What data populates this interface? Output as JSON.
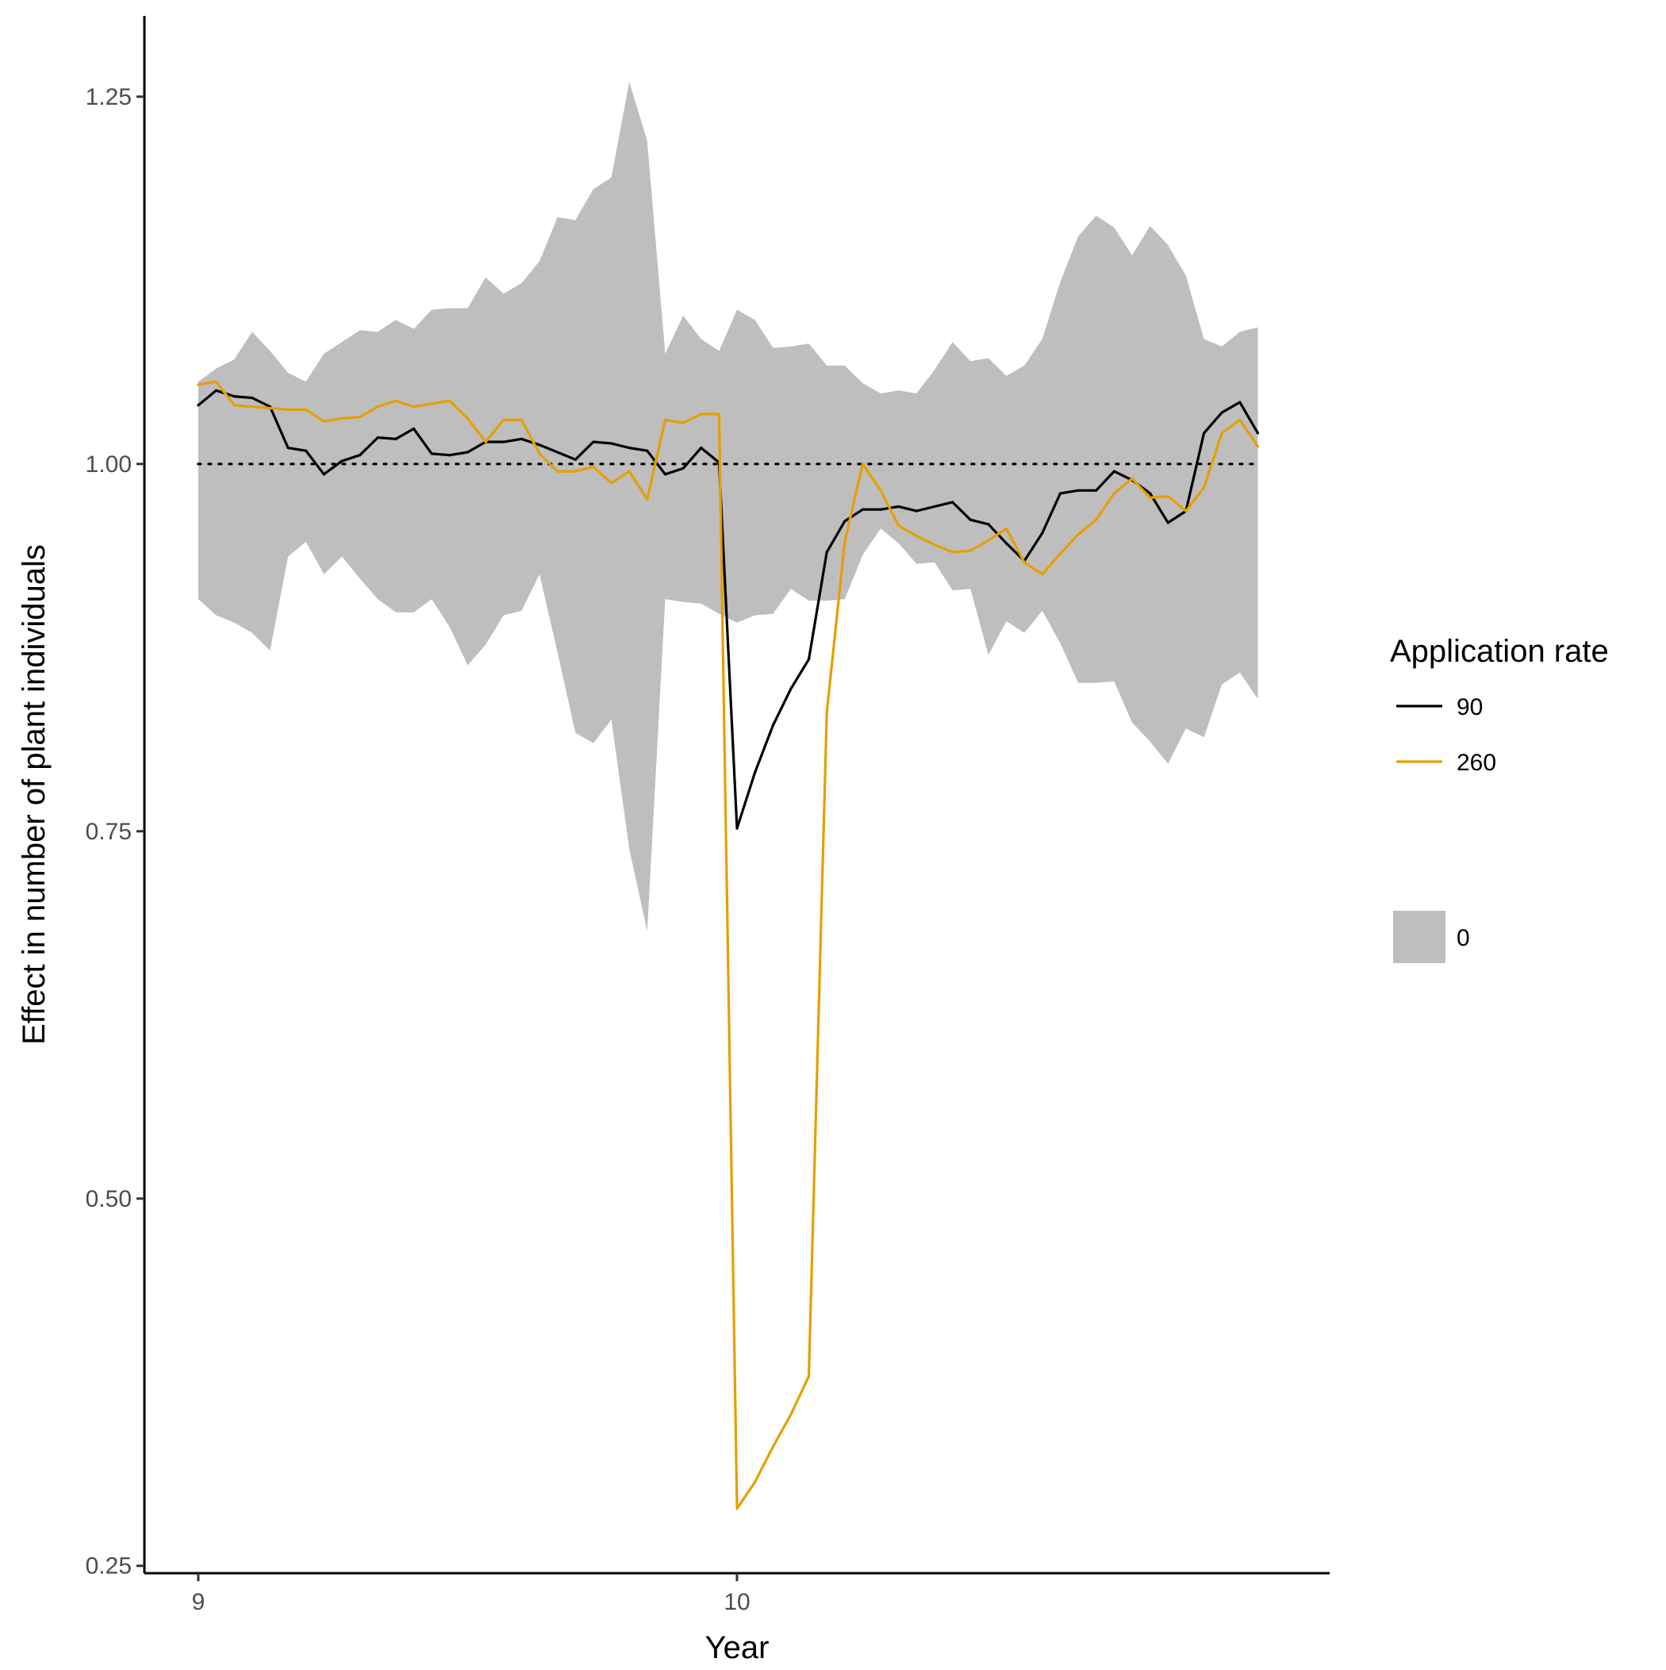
{
  "chart_data": {
    "type": "line",
    "title": "",
    "xlabel": "Year",
    "ylabel": "Effect in number of plant individuals",
    "xlim": [
      8.9,
      11.1
    ],
    "ylim": [
      0.245,
      1.305
    ],
    "x_ticks": [
      {
        "value": 9,
        "label": "9"
      },
      {
        "value": 10,
        "label": "10"
      }
    ],
    "y_ticks": [
      {
        "value": 0.25,
        "label": "0.25"
      },
      {
        "value": 0.5,
        "label": "0.50"
      },
      {
        "value": 0.75,
        "label": "0.75"
      },
      {
        "value": 1.0,
        "label": "1.00"
      },
      {
        "value": 1.25,
        "label": "1.25"
      }
    ],
    "reference_line": {
      "y": 1.0,
      "style": "dotted",
      "color": "#000000"
    },
    "x": [
      9.0,
      9.0333,
      9.0667,
      9.1,
      9.1333,
      9.1667,
      9.2,
      9.2333,
      9.2667,
      9.3,
      9.3333,
      9.3667,
      9.4,
      9.4333,
      9.4667,
      9.5,
      9.5333,
      9.5667,
      9.6,
      9.6333,
      9.6667,
      9.7,
      9.7333,
      9.7667,
      9.8,
      9.8333,
      9.8667,
      9.9,
      9.9333,
      9.9667,
      10.0,
      10.0333,
      10.0667,
      10.1,
      10.1333,
      10.1667,
      10.2,
      10.2333,
      10.2667,
      10.3,
      10.3333,
      10.3667,
      10.4,
      10.4333,
      10.4667,
      10.5,
      10.5333,
      10.5667,
      10.6,
      10.6333,
      10.6667,
      10.7,
      10.7333,
      10.7667,
      10.8,
      10.8333,
      10.8667,
      10.9,
      10.9333,
      10.9667
    ],
    "band": {
      "name": "0",
      "color": "#bebebe",
      "lower": [
        0.908,
        0.897,
        0.892,
        0.885,
        0.873,
        0.937,
        0.947,
        0.925,
        0.937,
        0.922,
        0.908,
        0.899,
        0.899,
        0.908,
        0.889,
        0.863,
        0.877,
        0.897,
        0.9,
        0.925,
        0.872,
        0.817,
        0.81,
        0.826,
        0.738,
        0.682,
        0.908,
        0.906,
        0.905,
        0.898,
        0.892,
        0.897,
        0.898,
        0.915,
        0.907,
        0.907,
        0.908,
        0.938,
        0.956,
        0.946,
        0.932,
        0.933,
        0.914,
        0.915,
        0.87,
        0.893,
        0.885,
        0.9,
        0.878,
        0.851,
        0.851,
        0.852,
        0.824,
        0.811,
        0.796,
        0.82,
        0.814,
        0.85,
        0.858,
        0.84
      ],
      "upper": [
        1.056,
        1.065,
        1.071,
        1.09,
        1.077,
        1.062,
        1.056,
        1.075,
        1.083,
        1.091,
        1.09,
        1.098,
        1.092,
        1.105,
        1.106,
        1.106,
        1.127,
        1.116,
        1.123,
        1.138,
        1.168,
        1.166,
        1.187,
        1.195,
        1.26,
        1.22,
        1.075,
        1.101,
        1.085,
        1.077,
        1.105,
        1.098,
        1.079,
        1.08,
        1.082,
        1.067,
        1.067,
        1.055,
        1.048,
        1.05,
        1.048,
        1.064,
        1.083,
        1.07,
        1.072,
        1.06,
        1.067,
        1.085,
        1.124,
        1.155,
        1.169,
        1.161,
        1.142,
        1.162,
        1.149,
        1.128,
        1.085,
        1.08,
        1.09,
        1.093
      ]
    },
    "series": [
      {
        "name": "90",
        "color": "#000000",
        "values": [
          1.04,
          1.05,
          1.046,
          1.045,
          1.039,
          1.011,
          1.009,
          0.993,
          1.002,
          1.006,
          1.018,
          1.017,
          1.024,
          1.007,
          1.006,
          1.008,
          1.015,
          1.015,
          1.017,
          1.013,
          1.008,
          1.003,
          1.015,
          1.014,
          1.011,
          1.009,
          0.993,
          0.997,
          1.011,
          1.001,
          0.752,
          0.79,
          0.822,
          0.847,
          0.867,
          0.94,
          0.961,
          0.969,
          0.969,
          0.971,
          0.968,
          0.971,
          0.974,
          0.962,
          0.959,
          0.946,
          0.934,
          0.953,
          0.98,
          0.982,
          0.982,
          0.995,
          0.989,
          0.98,
          0.96,
          0.968,
          1.021,
          1.035,
          1.042,
          1.021
        ]
      },
      {
        "name": "260",
        "color": "#e69f00",
        "values": [
          1.054,
          1.056,
          1.04,
          1.039,
          1.038,
          1.037,
          1.037,
          1.029,
          1.031,
          1.032,
          1.039,
          1.043,
          1.039,
          1.041,
          1.043,
          1.031,
          1.015,
          1.03,
          1.03,
          1.007,
          0.995,
          0.995,
          0.998,
          0.987,
          0.995,
          0.976,
          1.03,
          1.028,
          1.034,
          1.034,
          0.289,
          0.307,
          0.331,
          0.353,
          0.379,
          0.831,
          0.947,
          1.0,
          0.982,
          0.958,
          0.951,
          0.945,
          0.94,
          0.941,
          0.948,
          0.956,
          0.933,
          0.925,
          0.939,
          0.952,
          0.962,
          0.98,
          0.99,
          0.977,
          0.978,
          0.968,
          0.984,
          1.021,
          1.03,
          1.012
        ]
      }
    ],
    "legend": {
      "placement": "right",
      "title": "Application rate",
      "line_entries": [
        {
          "label": "90",
          "color": "#000000"
        },
        {
          "label": "260",
          "color": "#e69f00"
        }
      ],
      "band_entry": {
        "label": "0",
        "color": "#bebebe"
      }
    },
    "grid": false
  }
}
